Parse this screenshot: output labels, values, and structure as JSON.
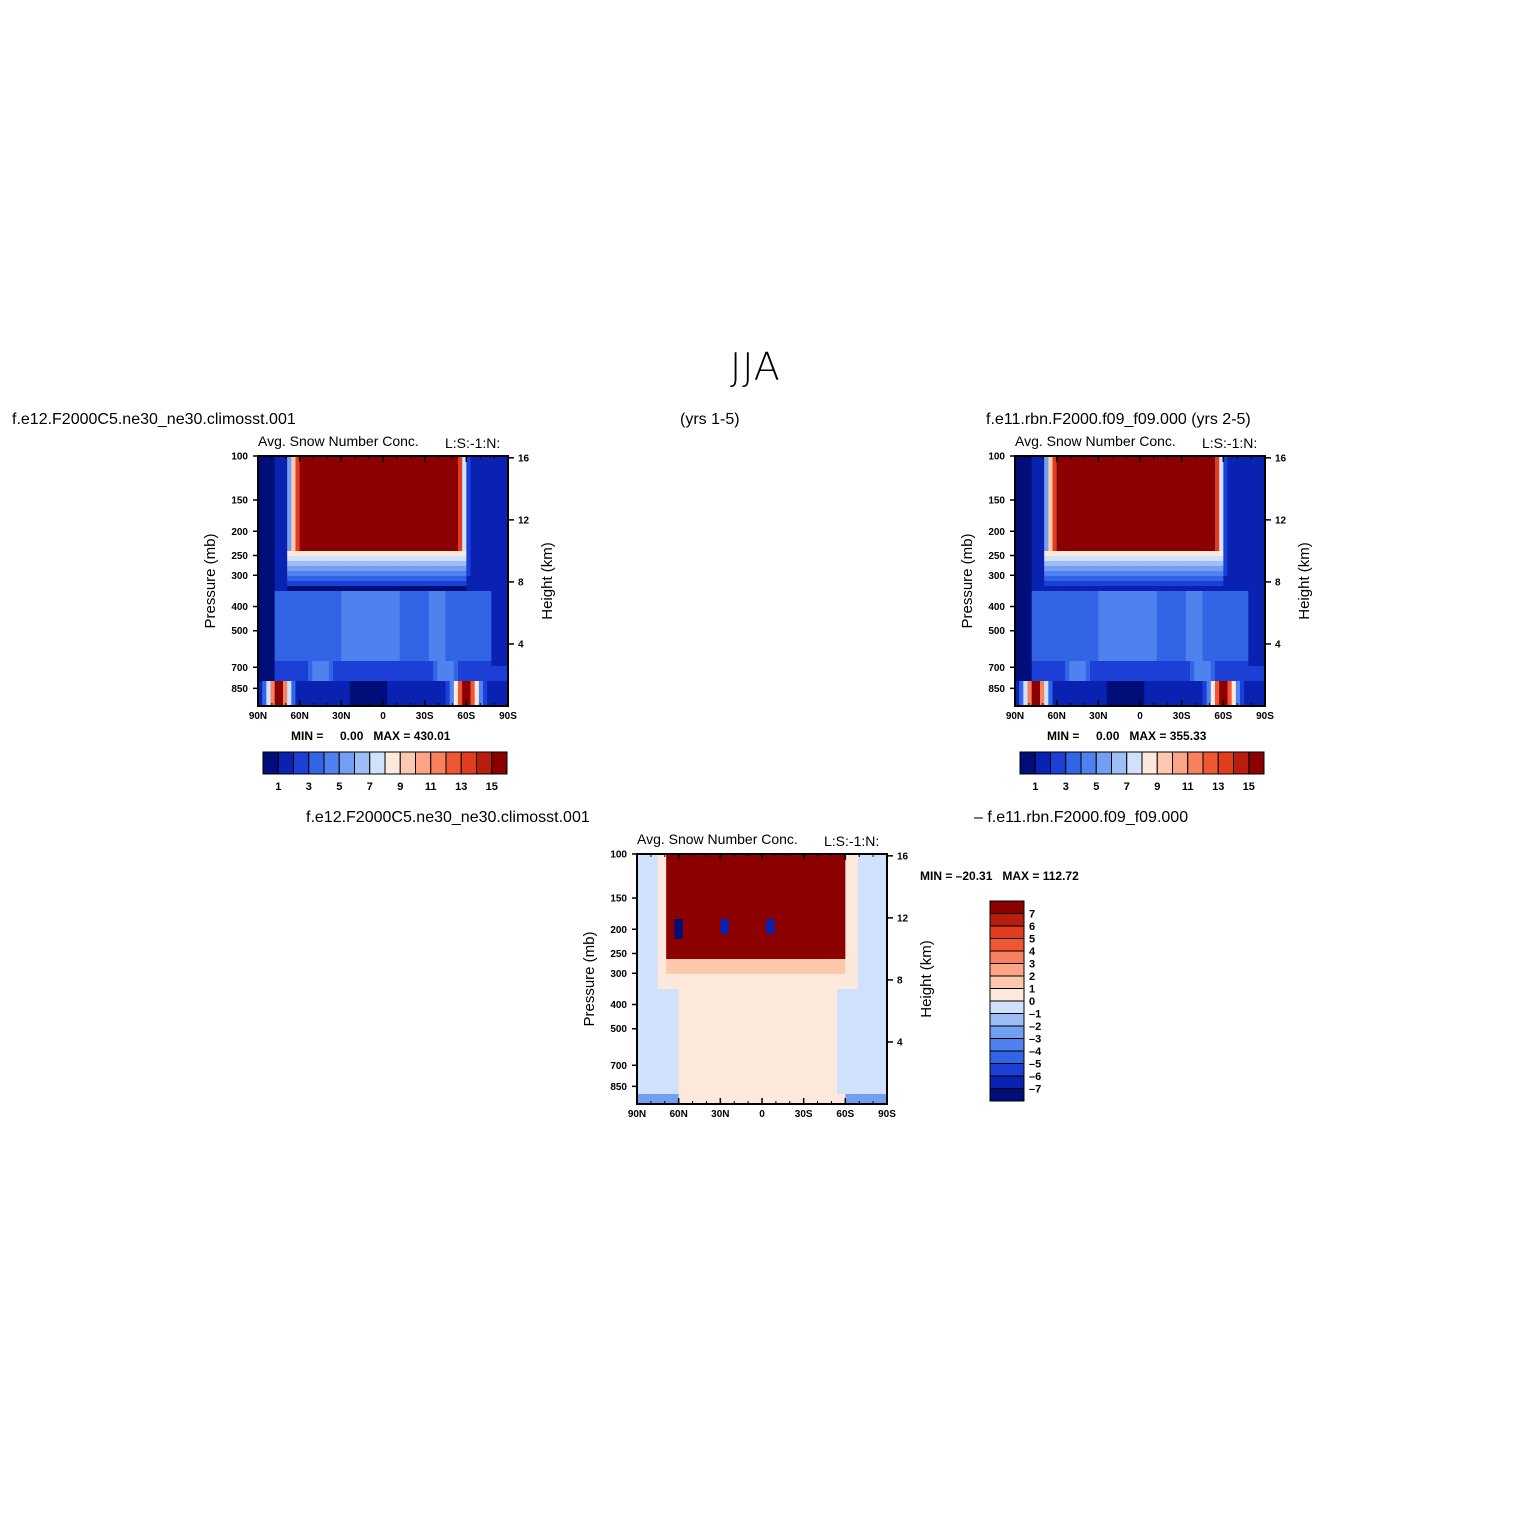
{
  "page_title": "JJA",
  "case1_label": "f.e12.F2000C5.ne30_ne30.climosst.001",
  "case1_years": "(yrs  1-5)",
  "case2_label": "f.e11.rbn.F2000.f09_f09.000  (yrs  2-5)",
  "diff_label_a": "f.e12.F2000C5.ne30_ne30.climosst.001",
  "diff_label_b": "–  f.e11.rbn.F2000.f09_f09.000",
  "colors": {
    "abs_scale": [
      "#000e7a",
      "#0a22b2",
      "#1c3fd6",
      "#3264e6",
      "#4f82ee",
      "#739ff2",
      "#9dbdf5",
      "#cfe1fb",
      "#fde9dc",
      "#fcc8ae",
      "#fba486",
      "#f7805e",
      "#ef5634",
      "#e03d1e",
      "#b81d0e",
      "#8c0000"
    ],
    "diff_scale": [
      "#000e7a",
      "#0a22b2",
      "#1c3fd6",
      "#3264e6",
      "#4f82ee",
      "#739ff2",
      "#9dbdf5",
      "#cfe1fb",
      "#fde9dc",
      "#fcc8ae",
      "#fba486",
      "#f7805e",
      "#ef5634",
      "#e03d1e",
      "#b81d0e",
      "#8c0000"
    ]
  },
  "chart_data": [
    {
      "type": "heatmap",
      "title": "Avg.  Snow  Number  Conc.",
      "title_right": "L:S:-1:N:",
      "ylabel": "Pressure  (mb)",
      "ylabel_right": "Height  (km)",
      "x_ticks": [
        "90N",
        "60N",
        "30N",
        "0",
        "30S",
        "60S",
        "90S"
      ],
      "y_ticks": [
        "100",
        "150",
        "200",
        "250",
        "300",
        "400",
        "500",
        "700",
        "850"
      ],
      "y_right_ticks": [
        "16",
        "12",
        "8",
        "4"
      ],
      "min_text": "MIN =     0.00   MAX = 430.01",
      "colorbar_labels": [
        "1",
        "3",
        "5",
        "7",
        "9",
        "11",
        "13",
        "15"
      ],
      "x_range": [
        90,
        -90
      ],
      "y_range": [
        100,
        1000
      ],
      "log_y": true
    },
    {
      "type": "heatmap",
      "title": "Avg.  Snow  Number  Conc.",
      "title_right": "L:S:-1:N:",
      "ylabel": "Pressure  (mb)",
      "ylabel_right": "Height  (km)",
      "x_ticks": [
        "90N",
        "60N",
        "30N",
        "0",
        "30S",
        "60S",
        "90S"
      ],
      "y_ticks": [
        "100",
        "150",
        "200",
        "250",
        "300",
        "400",
        "500",
        "700",
        "850"
      ],
      "y_right_ticks": [
        "16",
        "12",
        "8",
        "4"
      ],
      "min_text": "MIN =     0.00   MAX = 355.33",
      "colorbar_labels": [
        "1",
        "3",
        "5",
        "7",
        "9",
        "11",
        "13",
        "15"
      ],
      "x_range": [
        90,
        -90
      ],
      "y_range": [
        100,
        1000
      ],
      "log_y": true
    },
    {
      "type": "heatmap",
      "title": "Avg.  Snow  Number  Conc.",
      "title_right": "L:S:-1:N:",
      "ylabel": "Pressure  (mb)",
      "ylabel_right": "Height  (km)",
      "x_ticks": [
        "90N",
        "60N",
        "30N",
        "0",
        "30S",
        "60S",
        "90S"
      ],
      "y_ticks": [
        "100",
        "150",
        "200",
        "250",
        "300",
        "400",
        "500",
        "700",
        "850"
      ],
      "y_right_ticks": [
        "16",
        "12",
        "8",
        "4"
      ],
      "min_text": "MIN = –20.31   MAX = 112.72",
      "colorbar_labels": [
        "7",
        "6",
        "5",
        "4",
        "3",
        "2",
        "1",
        "0",
        "–1",
        "–2",
        "–3",
        "–4",
        "–5",
        "–6",
        "–7"
      ],
      "x_range": [
        90,
        -90
      ],
      "y_range": [
        100,
        1000
      ],
      "log_y": true
    }
  ]
}
